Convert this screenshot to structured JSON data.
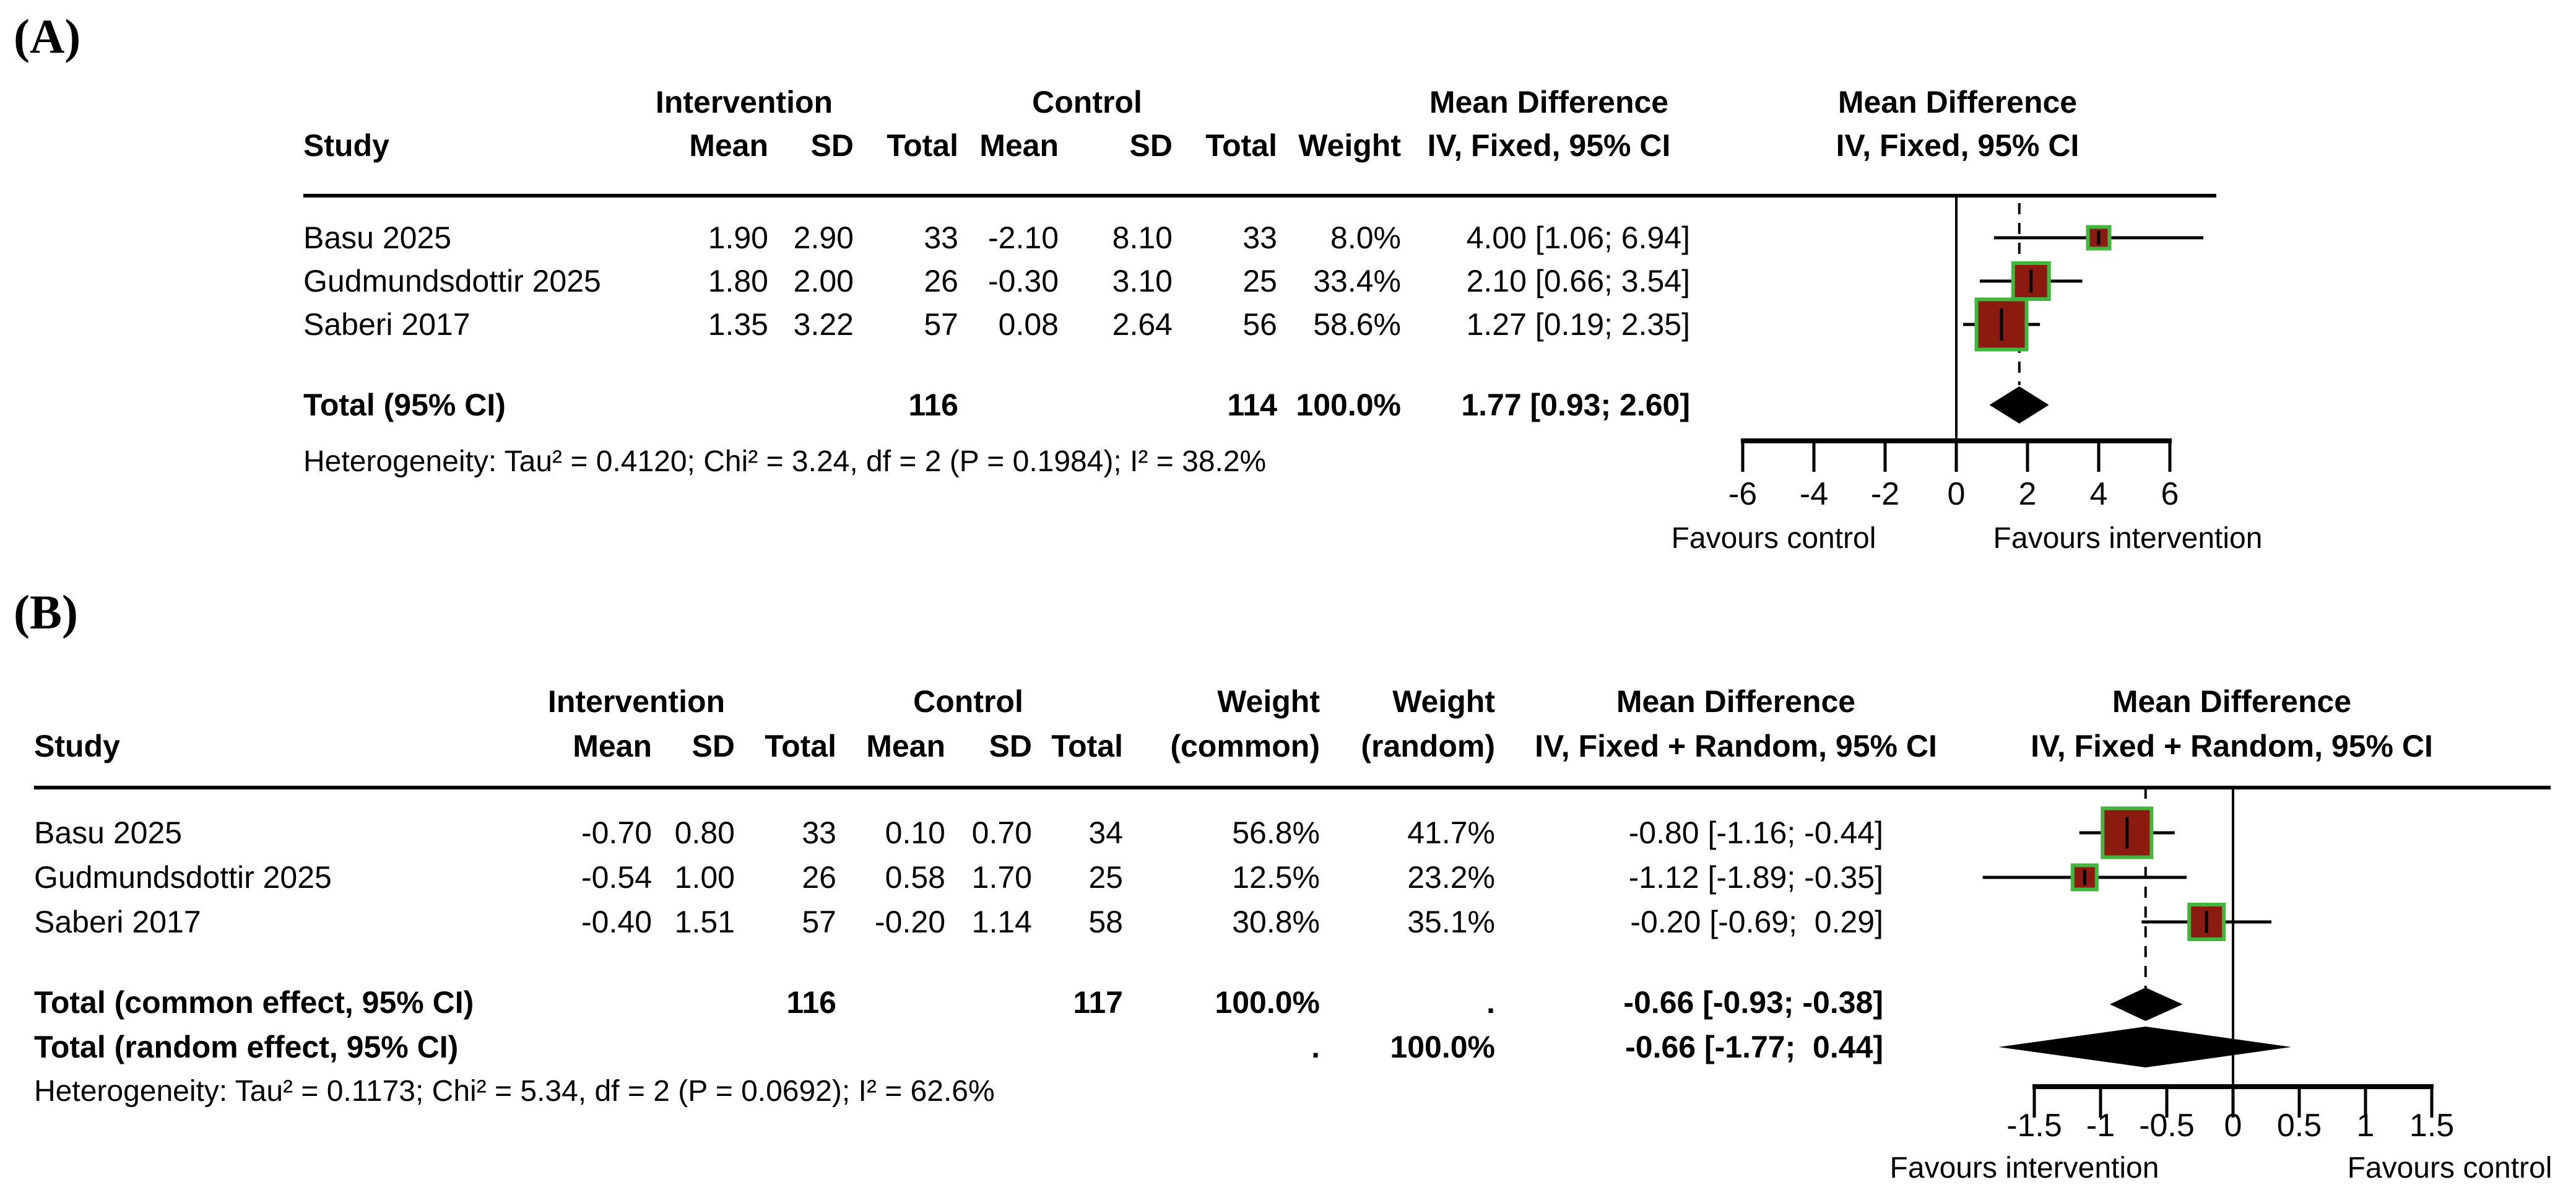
{
  "colors": {
    "square_fill": "#8b1a10",
    "square_border": "#43b63f",
    "diamond_fill": "#000000",
    "line": "#000000"
  },
  "panelA": {
    "label": "(A)",
    "header": {
      "study": "Study",
      "group_intervention": "Intervention",
      "group_control": "Control",
      "group_md_text": "Mean Difference",
      "group_md_plot": "Mean Difference",
      "col_mean_i": "Mean",
      "col_sd_i": "SD",
      "col_total_i": "Total",
      "col_mean_c": "Mean",
      "col_sd_c": "SD",
      "col_total_c": "Total",
      "col_weight": "Weight",
      "col_md_ci": "IV, Fixed, 95% CI",
      "col_md_ci_plot": "IV, Fixed, 95% CI"
    },
    "rows": [
      {
        "study": "Basu 2025",
        "i_mean": "1.90",
        "i_sd": "2.90",
        "i_total": "33",
        "c_mean": "-2.10",
        "c_sd": "8.10",
        "c_total": "33",
        "weight": "8.0%",
        "md_ci": "4.00 [1.06; 6.94]"
      },
      {
        "study": "Gudmundsdottir 2025",
        "i_mean": "1.80",
        "i_sd": "2.00",
        "i_total": "26",
        "c_mean": "-0.30",
        "c_sd": "3.10",
        "c_total": "25",
        "weight": "33.4%",
        "md_ci": "2.10 [0.66; 3.54]"
      },
      {
        "study": "Saberi 2017",
        "i_mean": "1.35",
        "i_sd": "3.22",
        "i_total": "57",
        "c_mean": "0.08",
        "c_sd": "2.64",
        "c_total": "56",
        "weight": "58.6%",
        "md_ci": "1.27 [0.19; 2.35]"
      }
    ],
    "total": {
      "label": "Total (95% CI)",
      "i_total": "116",
      "c_total": "114",
      "weight": "100.0%",
      "md_ci": "1.77 [0.93; 2.60]"
    },
    "heterogeneity": "Heterogeneity: Tau² = 0.4120; Chi² = 3.24, df = 2 (P = 0.1984); I² = 38.2%",
    "axis": {
      "ticks": [
        "-6",
        "-4",
        "-2",
        "0",
        "2",
        "4",
        "6"
      ],
      "favours_left": "Favours control",
      "favours_right": "Favours intervention"
    }
  },
  "panelB": {
    "label": "(B)",
    "header": {
      "study": "Study",
      "group_intervention": "Intervention",
      "group_control": "Control",
      "group_weight_common": "Weight",
      "group_weight_random": "Weight",
      "group_md_text": "Mean Difference",
      "group_md_plot": "Mean Difference",
      "col_mean_i": "Mean",
      "col_sd_i": "SD",
      "col_total_i": "Total",
      "col_mean_c": "Mean",
      "col_sd_c": "SD",
      "col_total_c": "Total",
      "col_weight_common": "(common)",
      "col_weight_random": "(random)",
      "col_md_ci": "IV, Fixed + Random, 95% CI",
      "col_md_ci_plot": "IV, Fixed + Random, 95% CI"
    },
    "rows": [
      {
        "study": "Basu 2025",
        "i_mean": "-0.70",
        "i_sd": "0.80",
        "i_total": "33",
        "c_mean": "0.10",
        "c_sd": "0.70",
        "c_total": "34",
        "weight_common": "56.8%",
        "weight_random": "41.7%",
        "md_ci": "-0.80 [-1.16; -0.44]"
      },
      {
        "study": "Gudmundsdottir 2025",
        "i_mean": "-0.54",
        "i_sd": "1.00",
        "i_total": "26",
        "c_mean": "0.58",
        "c_sd": "1.70",
        "c_total": "25",
        "weight_common": "12.5%",
        "weight_random": "23.2%",
        "md_ci": "-1.12 [-1.89; -0.35]"
      },
      {
        "study": "Saberi 2017",
        "i_mean": "-0.40",
        "i_sd": "1.51",
        "i_total": "57",
        "c_mean": "-0.20",
        "c_sd": "1.14",
        "c_total": "58",
        "weight_common": "30.8%",
        "weight_random": "35.1%",
        "md_ci": "-0.20 [-0.69;  0.29]"
      }
    ],
    "total_common": {
      "label": "Total (common effect, 95% CI)",
      "i_total": "116",
      "c_total": "117",
      "weight_common": "100.0%",
      "weight_random": ".",
      "md_ci": "-0.66 [-0.93; -0.38]"
    },
    "total_random": {
      "label": "Total (random effect, 95% CI)",
      "weight_common": ".",
      "weight_random": "100.0%",
      "md_ci": "-0.66 [-1.77;  0.44]"
    },
    "heterogeneity": "Heterogeneity: Tau² = 0.1173; Chi² = 5.34, df = 2 (P = 0.0692); I² = 62.6%",
    "axis": {
      "ticks": [
        "-1.5",
        "-1",
        "-0.5",
        "0",
        "0.5",
        "1",
        "1.5"
      ],
      "favours_left": "Favours intervention",
      "favours_right": "Favours control"
    }
  },
  "chart_data": [
    {
      "type": "forest",
      "panel": "A",
      "model": "IV, Fixed",
      "title": "Mean Difference — IV, Fixed, 95% CI",
      "xlim": [
        -6,
        6
      ],
      "ticks": [
        -6,
        -4,
        -2,
        0,
        2,
        4,
        6
      ],
      "tick_labels": [
        "-6",
        "-4",
        "-2",
        "0",
        "2",
        "4",
        "6"
      ],
      "reference_line": 0,
      "dashed_line": 1.77,
      "studies": [
        {
          "name": "Basu 2025",
          "estimate": 4.0,
          "ci_lower": 1.06,
          "ci_upper": 6.94,
          "weight_pct": 8.0
        },
        {
          "name": "Gudmundsdottir 2025",
          "estimate": 2.1,
          "ci_lower": 0.66,
          "ci_upper": 3.54,
          "weight_pct": 33.4
        },
        {
          "name": "Saberi 2017",
          "estimate": 1.27,
          "ci_lower": 0.19,
          "ci_upper": 2.35,
          "weight_pct": 58.6
        }
      ],
      "pooled": [
        {
          "label": "Total (95% CI)",
          "estimate": 1.77,
          "ci_lower": 0.93,
          "ci_upper": 2.6,
          "weight_pct": 100.0
        }
      ],
      "heterogeneity": {
        "tau2": 0.412,
        "chi2": 3.24,
        "df": 2,
        "p": 0.1984,
        "i2_pct": 38.2
      },
      "favours_left": "Favours control",
      "favours_right": "Favours intervention"
    },
    {
      "type": "forest",
      "panel": "B",
      "model": "IV, Fixed + Random",
      "title": "Mean Difference — IV, Fixed + Random, 95% CI",
      "xlim": [
        -1.5,
        1.5
      ],
      "ticks": [
        -1.5,
        -1,
        -0.5,
        0,
        0.5,
        1,
        1.5
      ],
      "tick_labels": [
        "-1.5",
        "-1",
        "-0.5",
        "0",
        "0.5",
        "1",
        "1.5"
      ],
      "reference_line": 0,
      "dashed_line": -0.66,
      "studies": [
        {
          "name": "Basu 2025",
          "estimate": -0.8,
          "ci_lower": -1.16,
          "ci_upper": -0.44,
          "weight_pct": 56.8
        },
        {
          "name": "Gudmundsdottir 2025",
          "estimate": -1.12,
          "ci_lower": -1.89,
          "ci_upper": -0.35,
          "weight_pct": 12.5
        },
        {
          "name": "Saberi 2017",
          "estimate": -0.2,
          "ci_lower": -0.69,
          "ci_upper": 0.29,
          "weight_pct": 30.8
        }
      ],
      "pooled": [
        {
          "label": "Total (common effect, 95% CI)",
          "estimate": -0.66,
          "ci_lower": -0.93,
          "ci_upper": -0.38,
          "weight_pct": 100.0
        },
        {
          "label": "Total (random effect, 95% CI)",
          "estimate": -0.66,
          "ci_lower": -1.77,
          "ci_upper": 0.44,
          "weight_pct": 100.0
        }
      ],
      "heterogeneity": {
        "tau2": 0.1173,
        "chi2": 5.34,
        "df": 2,
        "p": 0.0692,
        "i2_pct": 62.6
      },
      "favours_left": "Favours intervention",
      "favours_right": "Favours control"
    }
  ]
}
